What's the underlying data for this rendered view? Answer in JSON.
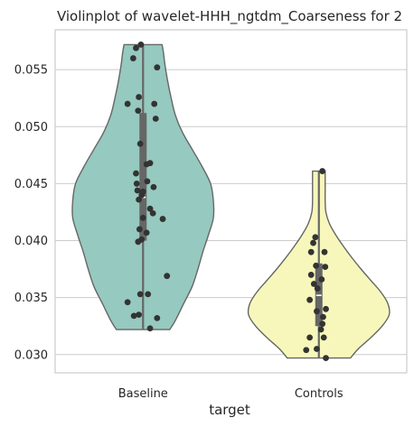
{
  "chart_data": {
    "type": "violin",
    "title": "Violinplot of wavelet-HHH_ngtdm_Coarseness for 2",
    "xlabel": "target",
    "ylabel": "",
    "categories": [
      "Baseline",
      "Controls"
    ],
    "ylim": [
      0.0284,
      0.0585
    ],
    "yticks": [
      0.03,
      0.035,
      0.04,
      0.045,
      0.05,
      0.055
    ],
    "ytick_labels": [
      "0.030",
      "0.035",
      "0.040",
      "0.045",
      "0.050",
      "0.055"
    ],
    "grid": "horizontal",
    "colors": {
      "Baseline": "#96c9bf",
      "Controls": "#f7f7bb",
      "outline": "#666666",
      "points": "#333333",
      "grid": "#cccccc",
      "spine": "#cccccc"
    },
    "violins": [
      {
        "name": "Baseline",
        "min": 0.0322,
        "max": 0.0572,
        "median": 0.0438,
        "q1": 0.04,
        "q3": 0.0512,
        "profile": [
          [
            0.0322,
            0.38
          ],
          [
            0.033,
            0.46
          ],
          [
            0.0345,
            0.58
          ],
          [
            0.036,
            0.7
          ],
          [
            0.0375,
            0.78
          ],
          [
            0.039,
            0.85
          ],
          [
            0.0405,
            0.93
          ],
          [
            0.042,
            1.0
          ],
          [
            0.0435,
            1.0
          ],
          [
            0.045,
            0.96
          ],
          [
            0.0465,
            0.84
          ],
          [
            0.048,
            0.7
          ],
          [
            0.0495,
            0.56
          ],
          [
            0.051,
            0.46
          ],
          [
            0.0525,
            0.4
          ],
          [
            0.054,
            0.35
          ],
          [
            0.0555,
            0.31
          ],
          [
            0.0565,
            0.29
          ],
          [
            0.0572,
            0.27
          ]
        ],
        "points": [
          [
            -0.03,
            0.0572
          ],
          [
            -0.1,
            0.0569
          ],
          [
            -0.14,
            0.056
          ],
          [
            0.2,
            0.0552
          ],
          [
            -0.06,
            0.0526
          ],
          [
            0.16,
            0.052
          ],
          [
            -0.22,
            0.052
          ],
          [
            -0.07,
            0.0514
          ],
          [
            0.18,
            0.0507
          ],
          [
            -0.04,
            0.0485
          ],
          [
            0.1,
            0.0468
          ],
          [
            0.05,
            0.0467
          ],
          [
            -0.1,
            0.0459
          ],
          [
            0.06,
            0.0452
          ],
          [
            -0.09,
            0.045
          ],
          [
            0.15,
            0.0447
          ],
          [
            -0.08,
            0.0444
          ],
          [
            0.0,
            0.0443
          ],
          [
            -0.02,
            0.044
          ],
          [
            -0.06,
            0.0436
          ],
          [
            0.1,
            0.0428
          ],
          [
            0.14,
            0.0424
          ],
          [
            0.0,
            0.042
          ],
          [
            0.28,
            0.0419
          ],
          [
            -0.05,
            0.041
          ],
          [
            0.05,
            0.0407
          ],
          [
            -0.02,
            0.0401
          ],
          [
            -0.07,
            0.0399
          ],
          [
            0.34,
            0.0369
          ],
          [
            -0.04,
            0.0353
          ],
          [
            0.07,
            0.0353
          ],
          [
            -0.22,
            0.0346
          ],
          [
            -0.06,
            0.0335
          ],
          [
            -0.13,
            0.0334
          ],
          [
            0.2,
            0.0332
          ],
          [
            0.1,
            0.0323
          ]
        ]
      },
      {
        "name": "Controls",
        "min": 0.0297,
        "max": 0.0461,
        "median": 0.0352,
        "q1": 0.0325,
        "q3": 0.038,
        "profile": [
          [
            0.0297,
            0.45
          ],
          [
            0.0305,
            0.56
          ],
          [
            0.0315,
            0.74
          ],
          [
            0.0325,
            0.9
          ],
          [
            0.0335,
            1.0
          ],
          [
            0.0345,
            0.98
          ],
          [
            0.0355,
            0.88
          ],
          [
            0.0365,
            0.74
          ],
          [
            0.0375,
            0.6
          ],
          [
            0.0385,
            0.47
          ],
          [
            0.0395,
            0.35
          ],
          [
            0.0405,
            0.24
          ],
          [
            0.0415,
            0.15
          ],
          [
            0.0425,
            0.1
          ],
          [
            0.0435,
            0.09
          ],
          [
            0.0445,
            0.09
          ],
          [
            0.0455,
            0.09
          ],
          [
            0.0461,
            0.09
          ]
        ],
        "points": [
          [
            0.05,
            0.0461
          ],
          [
            -0.05,
            0.0403
          ],
          [
            -0.08,
            0.0398
          ],
          [
            -0.11,
            0.039
          ],
          [
            0.08,
            0.039
          ],
          [
            -0.04,
            0.0378
          ],
          [
            0.09,
            0.0377
          ],
          [
            -0.11,
            0.037
          ],
          [
            0.04,
            0.0366
          ],
          [
            -0.07,
            0.0362
          ],
          [
            -0.02,
            0.0358
          ],
          [
            -0.13,
            0.0348
          ],
          [
            0.1,
            0.034
          ],
          [
            -0.03,
            0.0338
          ],
          [
            0.06,
            0.0333
          ],
          [
            0.05,
            0.0327
          ],
          [
            0.03,
            0.0322
          ],
          [
            -0.13,
            0.0315
          ],
          [
            0.07,
            0.0315
          ],
          [
            -0.03,
            0.0305
          ],
          [
            -0.18,
            0.0304
          ],
          [
            0.1,
            0.0297
          ]
        ]
      }
    ]
  }
}
